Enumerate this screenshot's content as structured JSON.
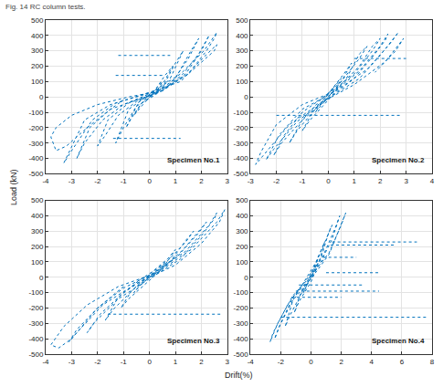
{
  "caption": "Fig. 14 RC column tests.",
  "x_label": "Drift(%)",
  "y_label": "Load (kN)",
  "chart_data": [
    {
      "type": "line",
      "annotation": "Specimen No.1",
      "color": "#0072bd",
      "line_style": "dotted",
      "grid": true,
      "xlim": [
        -4,
        3
      ],
      "xticks": [
        -4,
        -3,
        -2,
        -1,
        0,
        1,
        2,
        3
      ],
      "ylim": [
        -500,
        500
      ],
      "yticks": [
        -500,
        -400,
        -300,
        -200,
        -100,
        0,
        100,
        200,
        300,
        400,
        500
      ],
      "x": [
        0,
        0.3,
        0.5,
        0.3,
        0,
        -0.3,
        -0.6,
        -0.4,
        0,
        0.5,
        0.9,
        0.6,
        0.2,
        -0.4,
        -0.9,
        -0.7,
        -0.3,
        0.3,
        0.8,
        1.3,
        1.0,
        0.5,
        -0.2,
        -0.8,
        -1.3,
        -1.0,
        -0.5,
        0.2,
        0.9,
        1.5,
        1.9,
        1.6,
        1.0,
        0.2,
        -0.8,
        -1.6,
        -2.0,
        -1.7,
        -1.2,
        -0.5,
        0.5,
        1.3,
        1.9,
        2.3,
        2.0,
        1.4,
        0.5,
        -0.5,
        -1.5,
        -2.3,
        -2.8,
        -2.5,
        -1.8,
        -1.0,
        0,
        1.2,
        2.1,
        2.6,
        2.5,
        2.2,
        1.5,
        0.5,
        -0.5,
        -1.5,
        -2.5,
        -3.3,
        -3.0,
        -2.2,
        -1.3,
        0,
        1.2,
        2.1,
        2.6,
        2.5,
        1.5,
        0.5,
        -0.8,
        -2.0,
        -3.0,
        -3.6,
        -3.8,
        -3.6,
        -3.2,
        -2.4,
        -1.5,
        -1.0,
        null,
        -1.3,
        0.6,
        null,
        -1.2,
        0.8,
        null,
        -1.4,
        1.2
      ],
      "values": [
        0,
        40,
        100,
        60,
        10,
        -40,
        -120,
        -80,
        0,
        80,
        200,
        140,
        40,
        -30,
        -200,
        -140,
        -40,
        30,
        120,
        300,
        220,
        60,
        -10,
        -80,
        -300,
        -200,
        -60,
        10,
        100,
        250,
        380,
        300,
        120,
        20,
        -40,
        -150,
        -320,
        -250,
        -120,
        -30,
        40,
        150,
        280,
        400,
        300,
        150,
        40,
        -20,
        -80,
        -200,
        -400,
        -300,
        -150,
        -50,
        20,
        150,
        300,
        420,
        380,
        300,
        150,
        50,
        0,
        -50,
        -150,
        -430,
        -350,
        -150,
        -40,
        30,
        100,
        260,
        340,
        300,
        150,
        40,
        0,
        -50,
        -120,
        -200,
        -260,
        -350,
        -320,
        -200,
        -80,
        -20,
        null,
        140,
        140,
        null,
        270,
        270,
        null,
        -270,
        -270
      ]
    },
    {
      "type": "line",
      "annotation": "Specimen No.2",
      "color": "#0072bd",
      "line_style": "dotted",
      "grid": true,
      "xlim": [
        -3,
        4
      ],
      "xticks": [
        -3,
        -2,
        -1,
        0,
        1,
        2,
        3,
        4
      ],
      "ylim": [
        -500,
        500
      ],
      "yticks": [
        -500,
        -400,
        -300,
        -200,
        -100,
        0,
        100,
        200,
        300,
        400,
        500
      ],
      "x": [
        0,
        0.3,
        0.5,
        0.2,
        -0.2,
        -0.5,
        -0.3,
        0,
        0.5,
        0.9,
        0.6,
        0,
        -0.6,
        -1.0,
        -0.7,
        0,
        0.7,
        1.2,
        1.5,
        1.2,
        0.5,
        -0.3,
        -1.0,
        -1.5,
        -1.2,
        -0.4,
        0.5,
        1.2,
        1.7,
        2.0,
        1.7,
        1.0,
        0,
        -1.0,
        -1.7,
        -2.1,
        -1.8,
        -1.0,
        0,
        1.0,
        1.8,
        2.2,
        2.3,
        2.0,
        1.2,
        0.2,
        -1.0,
        -1.9,
        -2.4,
        -2.1,
        -1.2,
        0,
        1.2,
        2.0,
        2.5,
        2.7,
        2.4,
        1.5,
        0.3,
        -1.0,
        -2.0,
        -2.6,
        -2.8,
        -2.5,
        -1.5,
        -0.3,
        1.0,
        2.2,
        2.9,
        2.6,
        1.8,
        null,
        1.0,
        3.0,
        null,
        -2.0,
        2.8
      ],
      "values": [
        0,
        50,
        120,
        60,
        -20,
        -100,
        -60,
        0,
        100,
        220,
        150,
        20,
        -100,
        -220,
        -150,
        -20,
        120,
        280,
        330,
        250,
        100,
        -20,
        -150,
        -300,
        -220,
        -60,
        80,
        200,
        330,
        380,
        300,
        150,
        20,
        -100,
        -250,
        -380,
        -300,
        -150,
        -10,
        120,
        280,
        370,
        410,
        330,
        170,
        30,
        -80,
        -250,
        -410,
        -340,
        -160,
        -10,
        120,
        270,
        380,
        420,
        350,
        180,
        40,
        -50,
        -180,
        -360,
        -440,
        -380,
        -180,
        -40,
        80,
        230,
        380,
        300,
        160,
        null,
        250,
        250,
        null,
        -120,
        -120
      ]
    },
    {
      "type": "line",
      "annotation": "Specimen No.3",
      "color": "#0072bd",
      "line_style": "dotted",
      "grid": true,
      "xlim": [
        -4,
        3
      ],
      "xticks": [
        -4,
        -3,
        -2,
        -1,
        0,
        1,
        2,
        3
      ],
      "ylim": [
        -500,
        500
      ],
      "yticks": [
        -500,
        -400,
        -300,
        -200,
        -100,
        0,
        100,
        200,
        300,
        400,
        500
      ],
      "x": [
        0,
        0.4,
        0.6,
        0.3,
        -0.2,
        -0.6,
        -0.4,
        0,
        0.6,
        1.0,
        0.7,
        0,
        -0.7,
        -1.1,
        -0.8,
        0,
        0.8,
        1.4,
        1.7,
        1.4,
        0.6,
        -0.4,
        -1.2,
        -1.7,
        -1.4,
        -0.5,
        0.5,
        1.3,
        1.9,
        2.2,
        1.9,
        1.1,
        0,
        -1.0,
        -1.9,
        -2.4,
        -2.1,
        -1.2,
        0,
        1.2,
        2.0,
        2.5,
        2.6,
        2.3,
        1.4,
        0.2,
        -1.0,
        -2.0,
        -2.8,
        -3.1,
        -2.8,
        -1.8,
        -0.5,
        1.0,
        2.0,
        2.7,
        2.9,
        2.6,
        1.6,
        0.3,
        -1.2,
        -2.4,
        -3.3,
        -3.8,
        -3.5,
        -3.0,
        -2.0,
        -1.0,
        null,
        -1.6,
        2.8
      ],
      "values": [
        0,
        40,
        100,
        50,
        -20,
        -100,
        -60,
        0,
        80,
        180,
        120,
        20,
        -90,
        -200,
        -140,
        -20,
        100,
        240,
        300,
        230,
        90,
        -20,
        -130,
        -280,
        -210,
        -60,
        60,
        180,
        300,
        360,
        290,
        140,
        10,
        -100,
        -240,
        -360,
        -290,
        -140,
        -10,
        120,
        270,
        380,
        420,
        340,
        170,
        30,
        -70,
        -200,
        -340,
        -420,
        -360,
        -180,
        -40,
        80,
        220,
        360,
        440,
        360,
        180,
        30,
        -60,
        -180,
        -320,
        -440,
        -460,
        -400,
        -200,
        -60,
        null,
        -240,
        -240
      ]
    },
    {
      "type": "line",
      "annotation": "Specimen No.4",
      "color": "#0072bd",
      "line_style": "dotted",
      "grid": true,
      "xlim": [
        -4,
        8
      ],
      "xticks": [
        -4,
        -2,
        0,
        2,
        4,
        6,
        8
      ],
      "ylim": [
        -500,
        500
      ],
      "yticks": [
        -500,
        -400,
        -300,
        -200,
        -100,
        0,
        100,
        200,
        300,
        400,
        500
      ],
      "x": [
        0,
        0.3,
        0.5,
        0.3,
        -0.1,
        -0.5,
        -0.3,
        0,
        0.6,
        0.9,
        0.6,
        0,
        -0.7,
        -1.1,
        -0.8,
        0,
        0.7,
        1.2,
        1.4,
        1.1,
        0.4,
        -0.4,
        -1.2,
        -1.7,
        -1.4,
        -0.5,
        0.6,
        1.4,
        1.8,
        1.9,
        1.6,
        0.8,
        -0.2,
        -1.2,
        -2.0,
        -2.4,
        -2.1,
        -1.2,
        0,
        1.2,
        1.9,
        2.3,
        2.0,
        1.2,
        0,
        -1.2,
        -2.2,
        -2.7,
        -2.5,
        -1.5,
        -0.3,
        null,
        1.4,
        7.0,
        null,
        1.3,
        5.5,
        null,
        0.8,
        3.0,
        null,
        1.0,
        4.5,
        null,
        -0.8,
        3.5,
        null,
        -1.0,
        4.5,
        null,
        -1.3,
        2.0,
        null,
        -2.0,
        7.7
      ],
      "values": [
        0,
        60,
        140,
        80,
        -10,
        -100,
        -60,
        0,
        120,
        230,
        160,
        20,
        -110,
        -230,
        -160,
        -30,
        140,
        300,
        340,
        270,
        110,
        -20,
        -150,
        -320,
        -250,
        -80,
        90,
        250,
        370,
        400,
        320,
        140,
        0,
        -130,
        -300,
        -400,
        -320,
        -150,
        -10,
        150,
        320,
        420,
        340,
        160,
        10,
        -120,
        -300,
        -420,
        -360,
        -170,
        -30,
        null,
        230,
        230,
        null,
        210,
        210,
        null,
        130,
        130,
        null,
        30,
        30,
        null,
        -50,
        -50,
        null,
        -90,
        -90,
        null,
        -130,
        -130,
        null,
        -260,
        -260
      ]
    }
  ]
}
